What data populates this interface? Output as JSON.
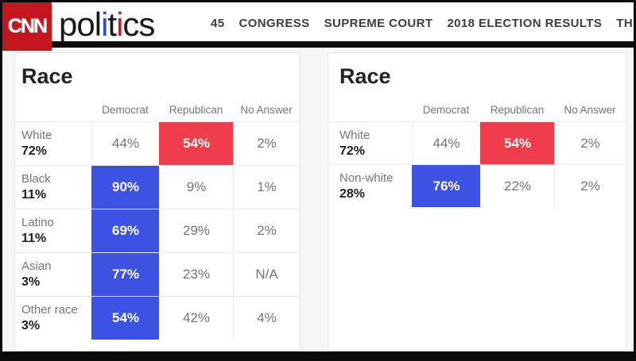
{
  "colors": {
    "cnn-red": "#c4161c",
    "logo-blue": "#2b50d0",
    "logo-red": "#c21f26",
    "accent-red": "#ef3e4b",
    "accent-blue": "#3c52e2"
  },
  "header": {
    "cnn_logo_text": "CNN",
    "wordmark": {
      "part1": "pol",
      "i1": "i",
      "part2": "t",
      "i2": "i",
      "part3": "cs"
    },
    "nav_items": [
      {
        "label": "45"
      },
      {
        "label": "CONGRESS"
      },
      {
        "label": "SUPREME COURT"
      },
      {
        "label": "2018 ELECTION RESULTS"
      },
      {
        "label": "THE"
      }
    ]
  },
  "tables": [
    {
      "title": "Race",
      "columns": [
        "Democrat",
        "Republican",
        "No Answer"
      ],
      "rows": [
        {
          "label": "White",
          "share": "72%",
          "democrat": "44%",
          "republican": "54%",
          "no_answer": "2%",
          "highlight": "republican-red"
        },
        {
          "label": "Black",
          "share": "11%",
          "democrat": "90%",
          "republican": "9%",
          "no_answer": "1%",
          "highlight": "democrat-blue"
        },
        {
          "label": "Latino",
          "share": "11%",
          "democrat": "69%",
          "republican": "29%",
          "no_answer": "2%",
          "highlight": "democrat-blue"
        },
        {
          "label": "Asian",
          "share": "3%",
          "democrat": "77%",
          "republican": "23%",
          "no_answer": "N/A",
          "highlight": "democrat-blue"
        },
        {
          "label": "Other race",
          "share": "3%",
          "democrat": "54%",
          "republican": "42%",
          "no_answer": "4%",
          "highlight": "democrat-blue"
        }
      ]
    },
    {
      "title": "Race",
      "columns": [
        "Democrat",
        "Republican",
        "No Answer"
      ],
      "rows": [
        {
          "label": "White",
          "share": "72%",
          "democrat": "44%",
          "republican": "54%",
          "no_answer": "2%",
          "highlight": "republican-red"
        },
        {
          "label": "Non-white",
          "share": "28%",
          "democrat": "76%",
          "republican": "22%",
          "no_answer": "2%",
          "highlight": "democrat-blue"
        }
      ]
    }
  ]
}
